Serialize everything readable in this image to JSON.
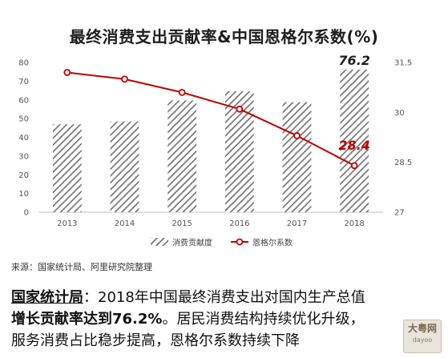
{
  "chart_data": {
    "type": "bar+line",
    "title": "最终消费支出贡献率&中国恩格尔系数(%)",
    "categories": [
      "2013",
      "2014",
      "2015",
      "2016",
      "2017",
      "2018"
    ],
    "series": [
      {
        "name": "消费贡献度",
        "type": "bar",
        "axis": "left",
        "values": [
          47,
          48.5,
          59.7,
          64.6,
          58.8,
          76.2
        ]
      },
      {
        "name": "恩格尔系数",
        "type": "line",
        "axis": "right",
        "values": [
          31.2,
          31.0,
          30.6,
          30.1,
          29.3,
          28.4
        ]
      }
    ],
    "y_left": {
      "ylim": [
        0,
        80
      ],
      "ticks": [
        "0",
        "10",
        "20",
        "30",
        "40",
        "50",
        "60",
        "70",
        "80"
      ]
    },
    "y_right": {
      "ylim": [
        27,
        31.5
      ],
      "ticks": [
        "27",
        "28.5",
        "30",
        "31.5"
      ]
    },
    "annotations": [
      {
        "series": "消费贡献度",
        "category": "2018",
        "text": "76.2",
        "color": "#1e1e1e"
      },
      {
        "series": "恩格尔系数",
        "category": "2018",
        "text": "28.4",
        "color": "#c00000"
      }
    ],
    "grid": false,
    "legend": "bottom-center",
    "colors": {
      "bar": "#7f7f7f",
      "line": "#c00000"
    }
  },
  "source": "来源：国家统计局、阿里研究院整理",
  "paragraph": {
    "lead": "国家统计局",
    "colon": "：",
    "line1_text": "2018年中国最终消费支出对国内生产总值",
    "line2_bold": "增长贡献率达到76.2%",
    "line2_text": "。居民消费结构持续优化升级，",
    "line3_text": "服务消费占比稳步提高，恩格尔系数持续下降"
  },
  "watermark": {
    "text": "大粤网",
    "sub": "dayoo"
  }
}
